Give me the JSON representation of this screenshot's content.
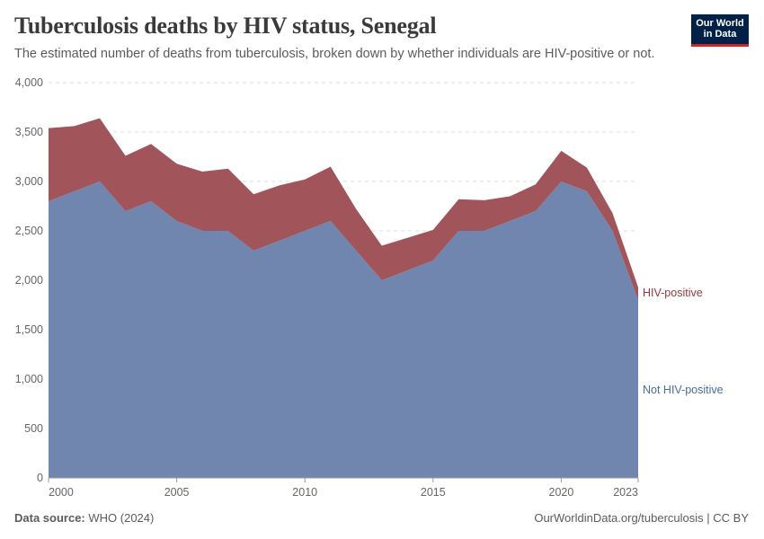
{
  "header": {
    "title": "Tuberculosis deaths by HIV status, Senegal",
    "subtitle": "The estimated number of deaths from tuberculosis, broken down by whether individuals are HIV-positive or not."
  },
  "logo": {
    "line1": "Our World",
    "line2": "in Data"
  },
  "footer": {
    "source_label": "Data source:",
    "source_value": "WHO (2024)",
    "credit": "OurWorldinData.org/tuberculosis | CC BY"
  },
  "colors": {
    "hiv_positive": "#a2545b",
    "not_hiv_positive": "#7086ae",
    "hiv_label": "#8e3a42",
    "not_hiv_label": "#4c6a9c"
  },
  "chart_data": {
    "type": "area",
    "stacked": true,
    "x": [
      2000,
      2001,
      2002,
      2003,
      2004,
      2005,
      2006,
      2007,
      2008,
      2009,
      2010,
      2011,
      2012,
      2013,
      2014,
      2015,
      2016,
      2017,
      2018,
      2019,
      2020,
      2021,
      2022,
      2023
    ],
    "series": [
      {
        "name": "Not HIV-positive",
        "color": "#7086ae",
        "values": [
          2800,
          2900,
          3000,
          2700,
          2800,
          2600,
          2500,
          2500,
          2300,
          2400,
          2500,
          2600,
          2300,
          2000,
          2100,
          2200,
          2500,
          2500,
          2600,
          2700,
          3000,
          2900,
          2500,
          1800
        ]
      },
      {
        "name": "HIV-positive",
        "color": "#a2545b",
        "values": [
          740,
          660,
          640,
          560,
          580,
          580,
          600,
          630,
          570,
          560,
          520,
          550,
          420,
          350,
          330,
          310,
          320,
          310,
          250,
          270,
          310,
          240,
          180,
          130
        ]
      }
    ],
    "y_ticks": [
      "0",
      "500",
      "1,000",
      "1,500",
      "2,000",
      "2,500",
      "3,000",
      "3,500",
      "4,000"
    ],
    "x_ticks": [
      "2000",
      "2005",
      "2010",
      "2015",
      "2020",
      "2023"
    ],
    "ylim": [
      0,
      4000
    ],
    "xlim": [
      2000,
      2023
    ],
    "grid": "horizontal dashed",
    "legend": "inline labels at right end of series"
  }
}
